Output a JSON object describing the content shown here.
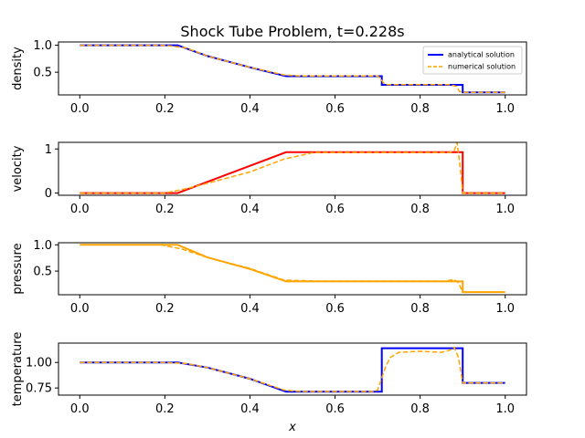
{
  "chart_data": {
    "type": "line",
    "title": "Shock Tube Problem, t=0.228s",
    "xlabel": "x",
    "xlim": [
      -0.05,
      1.05
    ],
    "xticks": [
      0.0,
      0.2,
      0.4,
      0.6,
      0.8,
      1.0
    ],
    "xtick_labels": [
      "0.0",
      "0.2",
      "0.4",
      "0.6",
      "0.8",
      "1.0"
    ],
    "legend": {
      "placement": "top-right",
      "entries": [
        "analytical solution",
        "numerical solution"
      ]
    },
    "panels": [
      {
        "ylabel": "density",
        "ylim": [
          0.08,
          1.06
        ],
        "yticks": [
          0.5,
          1.0
        ],
        "ytick_labels": [
          "0.5",
          "1.0"
        ],
        "analytical_color": "#0000ff",
        "analytical": {
          "x": [
            0.0,
            0.23,
            0.3,
            0.4,
            0.485,
            0.71,
            0.71,
            0.9,
            0.9,
            1.0
          ],
          "y": [
            1.0,
            1.0,
            0.8,
            0.59,
            0.426,
            0.426,
            0.266,
            0.266,
            0.125,
            0.125
          ]
        },
        "numerical": {
          "x": [
            0.0,
            0.2,
            0.25,
            0.3,
            0.4,
            0.48,
            0.52,
            0.7,
            0.705,
            0.715,
            0.72,
            0.87,
            0.885,
            0.893,
            0.9,
            1.0
          ],
          "y": [
            1.0,
            1.0,
            0.95,
            0.8,
            0.59,
            0.45,
            0.43,
            0.43,
            0.4,
            0.29,
            0.27,
            0.27,
            0.24,
            0.14,
            0.125,
            0.125
          ]
        }
      },
      {
        "ylabel": "velocity",
        "ylim": [
          -0.05,
          1.15
        ],
        "yticks": [
          0,
          1
        ],
        "ytick_labels": [
          "0",
          "1"
        ],
        "analytical_color": "#ff0000",
        "analytical": {
          "x": [
            0.0,
            0.23,
            0.485,
            0.9,
            0.9,
            1.0
          ],
          "y": [
            0.0,
            0.0,
            0.927,
            0.927,
            0.0,
            0.0
          ]
        },
        "numerical": {
          "x": [
            0.0,
            0.2,
            0.25,
            0.3,
            0.4,
            0.48,
            0.55,
            0.87,
            0.88,
            0.887,
            0.895,
            0.9,
            1.0
          ],
          "y": [
            0.0,
            0.0,
            0.1,
            0.22,
            0.48,
            0.77,
            0.92,
            0.92,
            0.96,
            1.15,
            0.5,
            0.0,
            0.0
          ]
        }
      },
      {
        "ylabel": "pressure",
        "ylim": [
          0.05,
          1.04
        ],
        "yticks": [
          0.5,
          1.0
        ],
        "ytick_labels": [
          "0.5",
          "1.0"
        ],
        "analytical_color": "#ffa500",
        "analytical": {
          "x": [
            0.0,
            0.23,
            0.3,
            0.4,
            0.485,
            0.9,
            0.9,
            1.0
          ],
          "y": [
            1.0,
            1.0,
            0.76,
            0.54,
            0.303,
            0.303,
            0.1,
            0.1
          ]
        },
        "numerical": {
          "x": [
            0.0,
            0.19,
            0.24,
            0.3,
            0.4,
            0.48,
            0.55,
            0.86,
            0.88,
            0.89,
            0.9,
            1.0
          ],
          "y": [
            1.0,
            1.0,
            0.92,
            0.76,
            0.55,
            0.33,
            0.31,
            0.31,
            0.34,
            0.28,
            0.1,
            0.1
          ]
        }
      },
      {
        "ylabel": "temperature",
        "ylim": [
          0.68,
          1.19
        ],
        "yticks": [
          0.75,
          1.0
        ],
        "ytick_labels": [
          "0.75",
          "1.00"
        ],
        "analytical_color": "#0000ff",
        "analytical": {
          "x": [
            0.0,
            0.23,
            0.3,
            0.4,
            0.485,
            0.71,
            0.71,
            0.9,
            0.9,
            1.0
          ],
          "y": [
            1.0,
            1.0,
            0.95,
            0.84,
            0.713,
            0.713,
            1.14,
            1.14,
            0.8,
            0.8
          ]
        },
        "numerical": {
          "x": [
            0.0,
            0.2,
            0.25,
            0.3,
            0.4,
            0.48,
            0.52,
            0.69,
            0.7,
            0.71,
            0.72,
            0.73,
            0.75,
            0.8,
            0.85,
            0.87,
            0.88,
            0.89,
            0.9,
            1.0
          ],
          "y": [
            1.0,
            1.0,
            0.99,
            0.95,
            0.84,
            0.73,
            0.715,
            0.715,
            0.73,
            0.85,
            0.97,
            1.05,
            1.1,
            1.11,
            1.1,
            1.12,
            1.15,
            1.05,
            0.8,
            0.8
          ]
        }
      }
    ]
  }
}
